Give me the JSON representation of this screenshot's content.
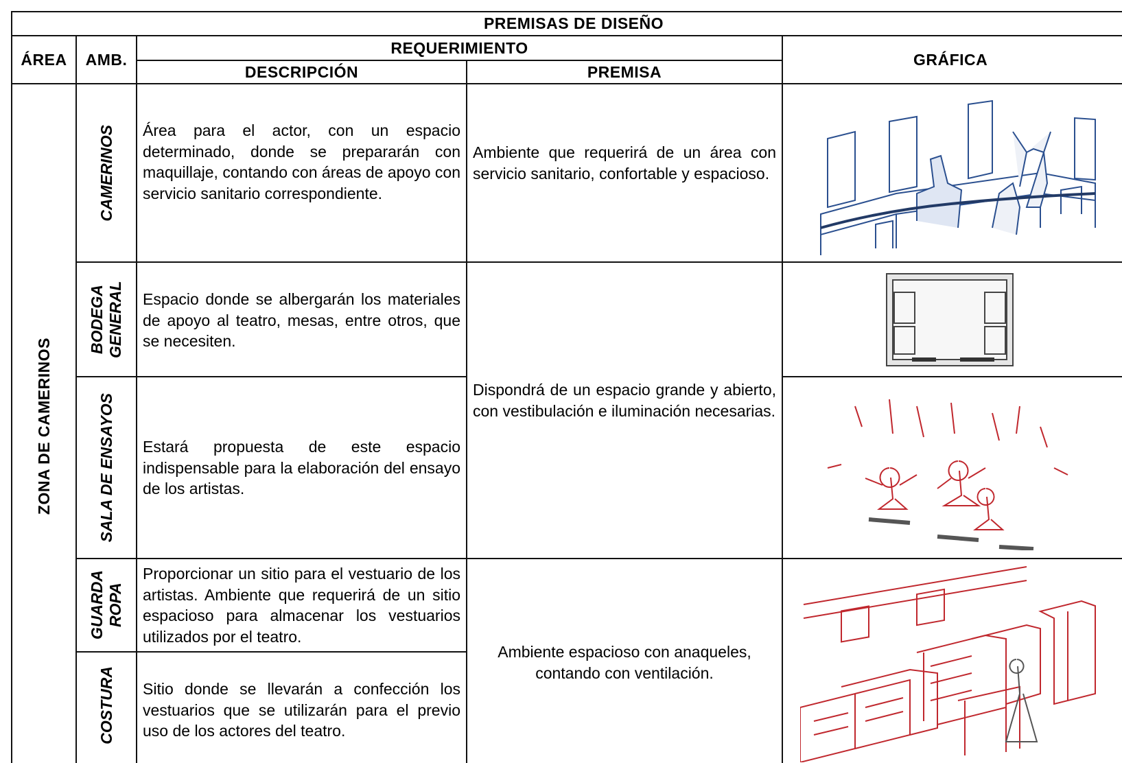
{
  "header": {
    "title": "PREMISAS DE DISEÑO",
    "columns": {
      "area": "ÁREA",
      "amb": "AMB.",
      "requerimiento": "REQUERIMIENTO",
      "descripcion": "DESCRIPCIÓN",
      "premisa": "PREMISA",
      "grafica": "GRÁFICA"
    }
  },
  "area": "ZONA DE CAMERINOS",
  "rows": [
    {
      "ambiente": "CAMERINOS",
      "descripcion": "Área para el actor, con un espacio determinado, donde se prepararán con maquillaje, contando con áreas de apoyo con servicio sanitario correspondiente."
    },
    {
      "ambiente": "BODEGA GENERAL",
      "descripcion": "Espacio donde se albergarán los materiales de apoyo al teatro, mesas, entre otros, que se necesiten."
    },
    {
      "ambiente": "SALA DE ENSAYOS",
      "descripcion": "Estará propuesta de este espacio indispensable para la elaboración del ensayo de los artistas."
    },
    {
      "ambiente": "GUARDA ROPA",
      "descripcion": "Proporcionar un sitio para el vestuario de los artistas. Ambiente que requerirá de un sitio espacioso para almacenar los vestuarios utilizados por el teatro."
    },
    {
      "ambiente": "COSTURA",
      "descripcion": "Sitio donde se llevarán a confección los vestuarios que se utilizarán para el previo uso de los actores del teatro."
    }
  ],
  "premisas": [
    "Ambiente que requerirá de un área con servicio sanitario, confortable y espacioso.",
    "Dispondrá de un espacio grande y abierto, con vestibulación e iluminación necesarias.",
    "Ambiente espacioso con anaqueles, contando con ventilación."
  ]
}
